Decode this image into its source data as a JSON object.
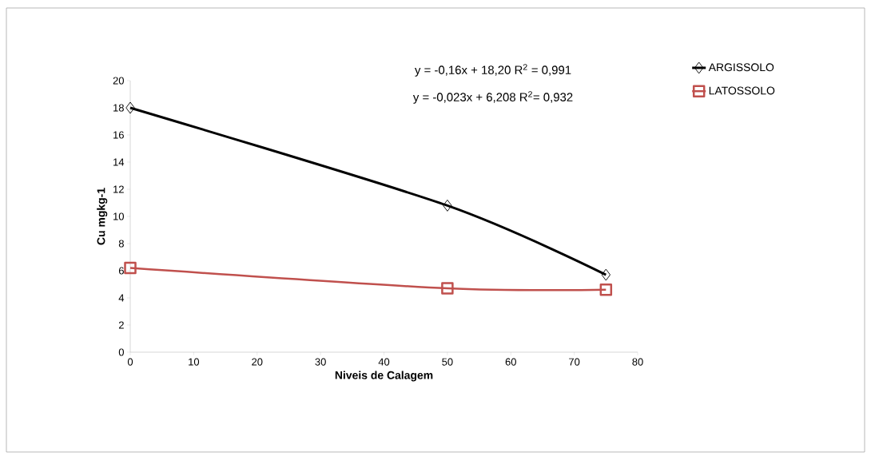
{
  "chart_data": {
    "type": "line",
    "xlabel": "Niveis de Calagem",
    "ylabel": "Cu mgkg-1",
    "xlim": [
      0,
      80
    ],
    "xticks": [
      0,
      10,
      20,
      30,
      40,
      50,
      60,
      70,
      80
    ],
    "ylim": [
      0,
      20
    ],
    "yticks": [
      0,
      2,
      4,
      6,
      8,
      10,
      12,
      14,
      16,
      18,
      20
    ],
    "grid": false,
    "legend": "right",
    "line_style": "solid",
    "annotations": [
      "y = -0,16x + 18,20   R$^{2}$ = 0,991",
      "y = -0,023x + 6,208  R$^{2}$= 0,932"
    ],
    "series": [
      {
        "name": "ARGISSOLO",
        "color": "#000000",
        "marker": "diamond",
        "x": [
          0,
          50,
          75
        ],
        "values": [
          18.0,
          10.8,
          5.7
        ]
      },
      {
        "name": "LATOSSOLO",
        "color": "#c0504d",
        "marker": "square",
        "x": [
          0,
          50,
          75
        ],
        "values": [
          6.2,
          4.7,
          4.6
        ]
      }
    ]
  }
}
